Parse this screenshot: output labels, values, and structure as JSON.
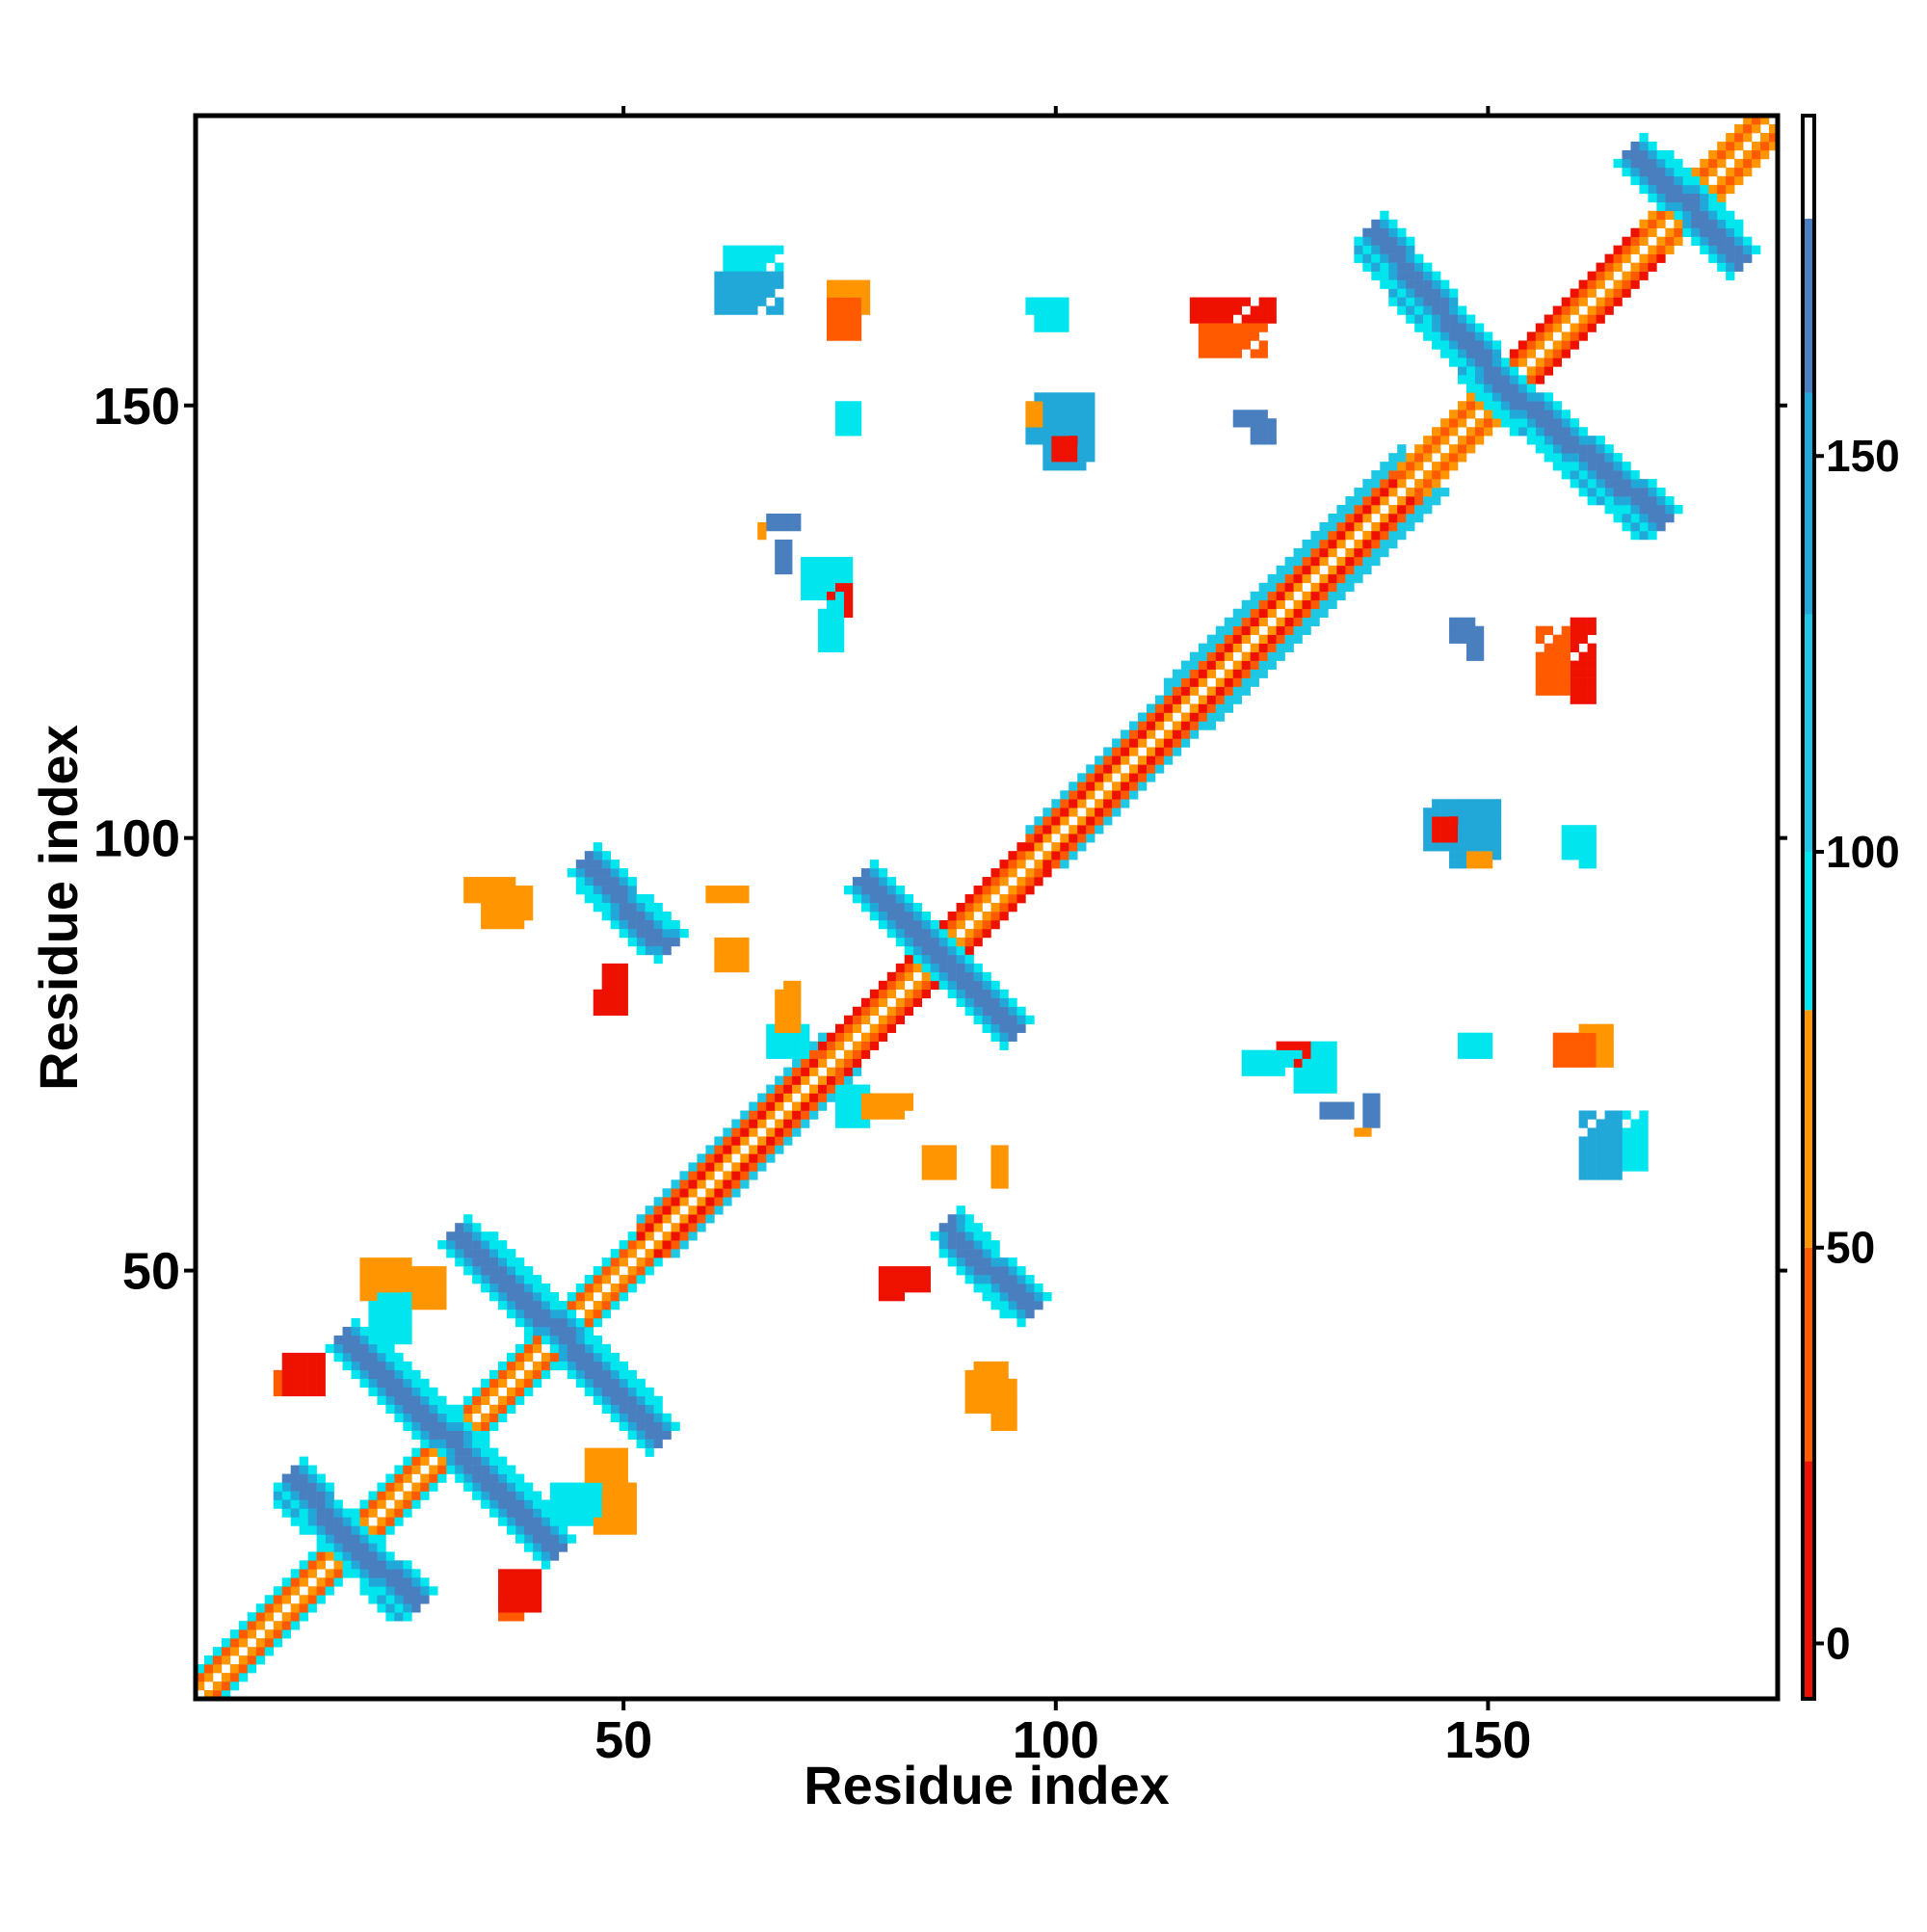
{
  "chart_data": {
    "type": "heatmap",
    "title": "",
    "xlabel": "Residue index",
    "ylabel": "Residue index",
    "xlim": [
      0.5,
      183.5
    ],
    "ylim": [
      0.5,
      183.5
    ],
    "x_ticks": [
      50,
      100,
      150
    ],
    "y_ticks": [
      50,
      100,
      150
    ],
    "colorbar": {
      "ticks": [
        0,
        50,
        100,
        150
      ],
      "range": [
        -7,
        193
      ],
      "bands": [
        {
          "from": -7,
          "to": 23,
          "color": "#ee1100"
        },
        {
          "from": 23,
          "to": 50,
          "color": "#ff5a00"
        },
        {
          "from": 50,
          "to": 80,
          "color": "#ff9500"
        },
        {
          "from": 80,
          "to": 100,
          "color": "#00e5ee"
        },
        {
          "from": 100,
          "to": 130,
          "color": "#1ec8e4"
        },
        {
          "from": 130,
          "to": 158,
          "color": "#22a8d8"
        },
        {
          "from": 158,
          "to": 180,
          "color": "#4a7fbf"
        },
        {
          "from": 180,
          "to": 193,
          "color": "#ffffff"
        }
      ]
    },
    "band_colors": {
      "diag0": "#ffffff",
      "diag1": "#ff9500",
      "diag2": "#ee1100",
      "diag3": "#ff5a00",
      "diag4": "#1ec8e4",
      "strand_a": "#4a7fbf",
      "strand_b": "#22a8d8",
      "strand_c": "#00e5ee",
      "orange": "#ff9500",
      "orange_red": "#ff5a00",
      "red": "#ee1100"
    },
    "contact_bands": [
      {
        "x0": 1,
        "x1": 9,
        "mode": "diag",
        "w": 3,
        "outer": "strand_c"
      },
      {
        "x0": 9,
        "x1": 52,
        "mode": "diag",
        "w": 3,
        "outer": "strand_c"
      },
      {
        "x0": 52,
        "x1": 73,
        "mode": "helix",
        "w": 4
      },
      {
        "x0": 73,
        "x1": 97,
        "mode": "diag",
        "w": 3,
        "outer": "red"
      },
      {
        "x0": 97,
        "x1": 113,
        "mode": "helix",
        "w": 4
      },
      {
        "x0": 113,
        "x1": 140,
        "mode": "helix",
        "w": 5
      },
      {
        "x0": 140,
        "x1": 152,
        "mode": "diag",
        "w": 3,
        "outer": "orange"
      },
      {
        "x0": 152,
        "x1": 168,
        "mode": "diag",
        "w": 3,
        "outer": "red"
      },
      {
        "x0": 168,
        "x1": 183,
        "mode": "diag",
        "w": 3,
        "outer": "orange"
      }
    ],
    "sheets": [
      {
        "x0": 11,
        "y0": 25,
        "x1": 26,
        "y1": 12,
        "w": 3
      },
      {
        "x0": 19,
        "y0": 42,
        "x1": 42,
        "y1": 18,
        "w": 3
      },
      {
        "x0": 33,
        "y0": 53,
        "x1": 54,
        "y1": 31,
        "w": 3
      },
      {
        "x0": 46,
        "y0": 96,
        "x1": 55,
        "y1": 88,
        "w": 3
      },
      {
        "x0": 79,
        "y0": 94,
        "x1": 95,
        "y1": 78,
        "w": 3
      },
      {
        "x0": 88,
        "y0": 54,
        "x1": 97,
        "y1": 46,
        "w": 3
      },
      {
        "x0": 136,
        "y0": 169,
        "x1": 152,
        "y1": 151,
        "w": 3
      },
      {
        "x0": 152,
        "y0": 152,
        "x1": 170,
        "y1": 137,
        "w": 3
      },
      {
        "x0": 169,
        "y0": 178,
        "x1": 179,
        "y1": 167,
        "w": 3
      }
    ],
    "blobs": [
      {
        "x": 62,
        "y": 166,
        "w": 7,
        "h": 3,
        "c": "strand_c"
      },
      {
        "x": 74,
        "y": 161,
        "w": 5,
        "h": 4,
        "c": "orange"
      },
      {
        "x": 97,
        "y": 161,
        "w": 5,
        "h": 2,
        "c": "strand_c"
      },
      {
        "x": 116,
        "y": 160,
        "w": 10,
        "h": 3,
        "c": "red"
      },
      {
        "x": 75,
        "y": 148,
        "w": 3,
        "h": 3,
        "c": "strand_a"
      },
      {
        "x": 97,
        "y": 146,
        "w": 8,
        "h": 6,
        "c": "strand_b"
      },
      {
        "x": 97,
        "y": 148,
        "w": 2,
        "h": 3,
        "c": "orange"
      },
      {
        "x": 121,
        "y": 148,
        "w": 4,
        "h": 2,
        "c": "strand_a"
      },
      {
        "x": 67,
        "y": 136,
        "w": 4,
        "h": 2,
        "c": "strand_a"
      },
      {
        "x": 71,
        "y": 128,
        "w": 6,
        "h": 5,
        "c": "strand_c"
      },
      {
        "x": 74,
        "y": 126,
        "w": 3,
        "h": 4,
        "c": "red"
      },
      {
        "x": 146,
        "y": 123,
        "w": 3,
        "h": 3,
        "c": "strand_a"
      },
      {
        "x": 156,
        "y": 117,
        "w": 4,
        "h": 8,
        "c": "orange_red"
      },
      {
        "x": 143,
        "y": 99,
        "w": 9,
        "h": 6,
        "c": "strand_b"
      },
      {
        "x": 144,
        "y": 100,
        "w": 3,
        "h": 3,
        "c": "red"
      },
      {
        "x": 159,
        "y": 98,
        "w": 3,
        "h": 4,
        "c": "strand_c"
      },
      {
        "x": 32,
        "y": 93,
        "w": 6,
        "h": 3,
        "c": "orange"
      },
      {
        "x": 47,
        "y": 80,
        "w": 4,
        "h": 3,
        "c": "red"
      },
      {
        "x": 60,
        "y": 93,
        "w": 5,
        "h": 2,
        "c": "orange"
      },
      {
        "x": 67,
        "y": 75,
        "w": 5,
        "h": 4,
        "c": "strand_c"
      },
      {
        "x": 78,
        "y": 68,
        "w": 6,
        "h": 3,
        "c": "orange"
      },
      {
        "x": 85,
        "y": 61,
        "w": 4,
        "h": 4,
        "c": "orange"
      },
      {
        "x": 81,
        "y": 48,
        "w": 5,
        "h": 3,
        "c": "red"
      },
      {
        "x": 122,
        "y": 73,
        "w": 10,
        "h": 3,
        "c": "strand_c"
      },
      {
        "x": 131,
        "y": 68,
        "w": 4,
        "h": 2,
        "c": "strand_a"
      },
      {
        "x": 135,
        "y": 66,
        "w": 2,
        "h": 1,
        "c": "orange"
      },
      {
        "x": 147,
        "y": 75,
        "w": 4,
        "h": 3,
        "c": "strand_c"
      },
      {
        "x": 158,
        "y": 74,
        "w": 5,
        "h": 4,
        "c": "orange_red"
      },
      {
        "x": 161,
        "y": 61,
        "w": 5,
        "h": 8,
        "c": "strand_b"
      },
      {
        "x": 90,
        "y": 34,
        "w": 5,
        "h": 6,
        "c": "orange"
      },
      {
        "x": 10,
        "y": 36,
        "w": 6,
        "h": 3,
        "c": "orange_red"
      },
      {
        "x": 20,
        "y": 47,
        "w": 6,
        "h": 5,
        "c": "orange"
      },
      {
        "x": 36,
        "y": 11,
        "w": 5,
        "h": 5,
        "c": "red"
      },
      {
        "x": 42,
        "y": 21,
        "w": 6,
        "h": 5,
        "c": "strand_c"
      },
      {
        "x": 46,
        "y": 26,
        "w": 5,
        "h": 4,
        "c": "orange"
      }
    ]
  }
}
